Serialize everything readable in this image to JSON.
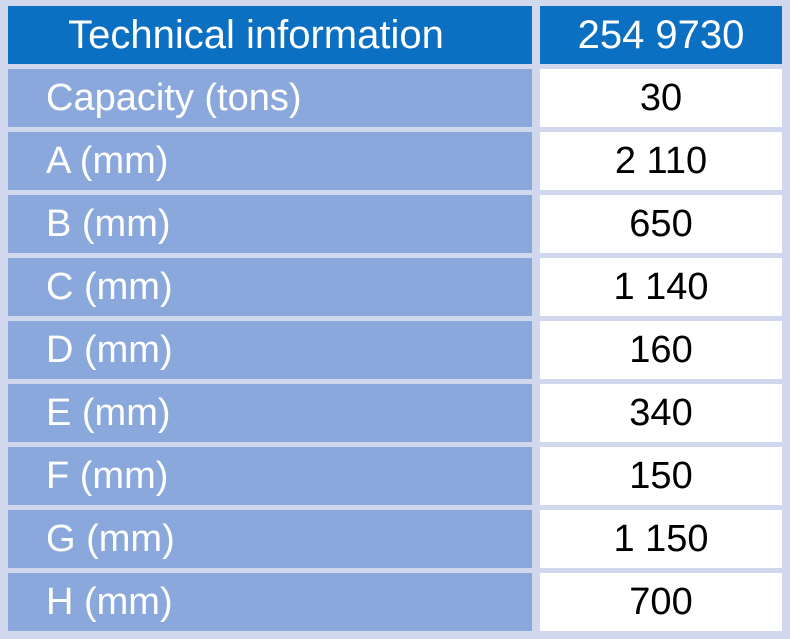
{
  "table": {
    "header": {
      "label": "Technical information",
      "value": "254 9730"
    },
    "colors": {
      "header_bg": "#0b6fc2",
      "label_bg": "#8aa8dc",
      "value_bg": "#ffffff",
      "frame": "#d1d8ee"
    },
    "rows": [
      {
        "label": "Capacity (tons)",
        "value": "30"
      },
      {
        "label": "A (mm)",
        "value": "2 110"
      },
      {
        "label": "B (mm)",
        "value": "650"
      },
      {
        "label": "C (mm)",
        "value": "1 140"
      },
      {
        "label": "D (mm)",
        "value": "160"
      },
      {
        "label": "E (mm)",
        "value": "340"
      },
      {
        "label": "F (mm)",
        "value": "150"
      },
      {
        "label": "G (mm)",
        "value": "1 150"
      },
      {
        "label": "H (mm)",
        "value": "700"
      }
    ]
  }
}
